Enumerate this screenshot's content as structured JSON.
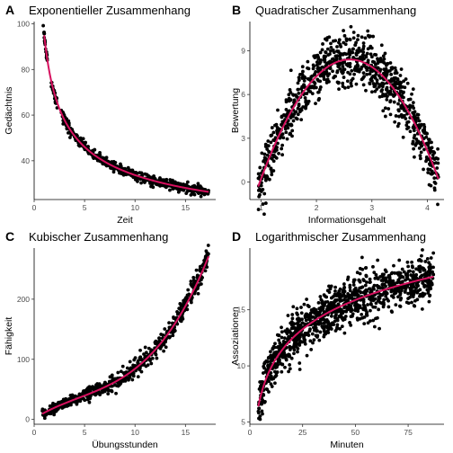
{
  "colors": {
    "points": "#000000",
    "curve": "#d6105e",
    "axis": "#000000",
    "tick_text": "#4d4d4d"
  },
  "chart_data": [
    {
      "type": "scatter",
      "letter": "A",
      "title": "Exponentieller Zusammenhang",
      "xlabel": "Zeit",
      "ylabel": "Gedächtnis",
      "xlim": [
        0,
        18
      ],
      "ylim": [
        23,
        101
      ],
      "xticks": [
        0,
        5,
        10,
        15
      ],
      "yticks": [
        40,
        60,
        80,
        100
      ],
      "grid": false,
      "legend": "none",
      "fit": {
        "kind": "power",
        "a": 95,
        "b": -0.45,
        "x_range": [
          1,
          17.3
        ]
      },
      "noise": 1.2,
      "clusters": [
        {
          "x": [
            0.9,
            1.3
          ],
          "n": 24,
          "noise": 1.0
        },
        {
          "x": [
            1.7,
            2.3
          ],
          "n": 24,
          "noise": 1.4
        },
        {
          "x": [
            2.6,
            3.4
          ],
          "n": 30,
          "noise": 1.2
        },
        {
          "x": [
            3.4,
            17.3
          ],
          "n": 520,
          "noise": 1.0
        }
      ]
    },
    {
      "type": "scatter",
      "letter": "B",
      "title": "Quadratischer Zusammenhang",
      "xlabel": "Informationsgehalt",
      "ylabel": "Bewertung",
      "xlim": [
        0.8,
        4.3
      ],
      "ylim": [
        -1.2,
        11
      ],
      "xticks": [
        1,
        2,
        3,
        4
      ],
      "yticks": [
        0,
        3,
        6,
        9
      ],
      "grid": false,
      "legend": "none",
      "fit": {
        "kind": "quadratic",
        "vertex_x": 2.6,
        "vertex_y": 8.4,
        "a": -3.2,
        "x_range": [
          0.95,
          4.2
        ]
      },
      "noise": 1.0,
      "clusters": [
        {
          "x": [
            0.95,
            4.2
          ],
          "n": 900,
          "noise": 0.9
        }
      ]
    },
    {
      "type": "scatter",
      "letter": "C",
      "title": "Kubischer Zusammenhang",
      "xlabel": "Übungsstunden",
      "ylabel": "Fähigkeit",
      "xlim": [
        0,
        18
      ],
      "ylim": [
        -8,
        285
      ],
      "xticks": [
        0,
        5,
        10,
        15
      ],
      "yticks": [
        0,
        100,
        200
      ],
      "grid": false,
      "legend": "none",
      "fit": {
        "kind": "cubic",
        "coef": [
          1.5,
          10.5,
          -0.93,
          0.0708
        ],
        "x_range": [
          0.8,
          17.3
        ]
      },
      "noise": 4,
      "clusters": [
        {
          "x": [
            0.8,
            1.2
          ],
          "n": 20,
          "noise": 3
        },
        {
          "x": [
            1.4,
            17.3
          ],
          "n": 640,
          "noise": 4
        }
      ]
    },
    {
      "type": "scatter",
      "letter": "D",
      "title": "Logarithmischer Zusammenhang",
      "xlabel": "Minuten",
      "ylabel": "Assoziationen",
      "xlim": [
        0,
        92
      ],
      "ylim": [
        4.8,
        20.5
      ],
      "xticks": [
        0,
        25,
        50,
        75
      ],
      "yticks": [
        5,
        10,
        15
      ],
      "grid": false,
      "legend": "none",
      "fit": {
        "kind": "log",
        "a": 1.2,
        "b": 3.75,
        "x_range": [
          4,
          87
        ]
      },
      "noise": 1.0,
      "clusters": [
        {
          "x": [
            4,
            87
          ],
          "n": 1100,
          "noise": 1.0
        }
      ]
    }
  ]
}
